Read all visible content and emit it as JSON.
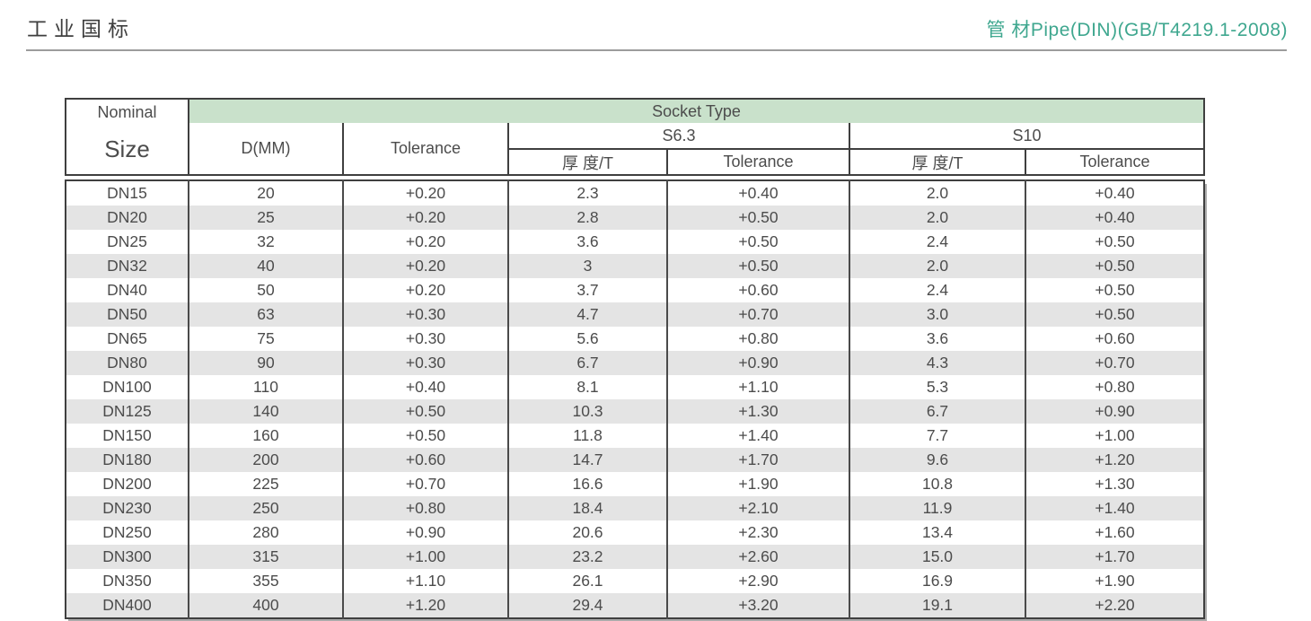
{
  "page": {
    "title_left": "工业国标",
    "title_right": "管 材Pipe(DIN)(GB/T4219.1-2008)"
  },
  "colors": {
    "accent_teal": "#3fa78f",
    "header_band_green": "#c9e1cb",
    "row_stripe_gray": "#e4e4e4",
    "text_gray": "#4c4c4c",
    "border_dark": "#3f3f3f",
    "rule_gray": "#9c9c9c"
  },
  "table": {
    "header": {
      "nominal": {
        "line1": "Nominal",
        "line2": "Size"
      },
      "socket_type": "Socket Type",
      "d_mm": "D(MM)",
      "tolerance": "Tolerance",
      "groups": [
        {
          "label": "S6.3",
          "thickness": "厚 度/T",
          "tolerance": "Tolerance"
        },
        {
          "label": "S10",
          "thickness": "厚 度/T",
          "tolerance": "Tolerance"
        }
      ]
    },
    "rows": [
      [
        "DN15",
        "20",
        "+0.20",
        "2.3",
        "+0.40",
        "2.0",
        "+0.40"
      ],
      [
        "DN20",
        "25",
        "+0.20",
        "2.8",
        "+0.50",
        "2.0",
        "+0.40"
      ],
      [
        "DN25",
        "32",
        "+0.20",
        "3.6",
        "+0.50",
        "2.4",
        "+0.50"
      ],
      [
        "DN32",
        "40",
        "+0.20",
        "3",
        "+0.50",
        "2.0",
        "+0.50"
      ],
      [
        "DN40",
        "50",
        "+0.20",
        "3.7",
        "+0.60",
        "2.4",
        "+0.50"
      ],
      [
        "DN50",
        "63",
        "+0.30",
        "4.7",
        "+0.70",
        "3.0",
        "+0.50"
      ],
      [
        "DN65",
        "75",
        "+0.30",
        "5.6",
        "+0.80",
        "3.6",
        "+0.60"
      ],
      [
        "DN80",
        "90",
        "+0.30",
        "6.7",
        "+0.90",
        "4.3",
        "+0.70"
      ],
      [
        "DN100",
        "110",
        "+0.40",
        "8.1",
        "+1.10",
        "5.3",
        "+0.80"
      ],
      [
        "DN125",
        "140",
        "+0.50",
        "10.3",
        "+1.30",
        "6.7",
        "+0.90"
      ],
      [
        "DN150",
        "160",
        "+0.50",
        "11.8",
        "+1.40",
        "7.7",
        "+1.00"
      ],
      [
        "DN180",
        "200",
        "+0.60",
        "14.7",
        "+1.70",
        "9.6",
        "+1.20"
      ],
      [
        "DN200",
        "225",
        "+0.70",
        "16.6",
        "+1.90",
        "10.8",
        "+1.30"
      ],
      [
        "DN230",
        "250",
        "+0.80",
        "18.4",
        "+2.10",
        "11.9",
        "+1.40"
      ],
      [
        "DN250",
        "280",
        "+0.90",
        "20.6",
        "+2.30",
        "13.4",
        "+1.60"
      ],
      [
        "DN300",
        "315",
        "+1.00",
        "23.2",
        "+2.60",
        "15.0",
        "+1.70"
      ],
      [
        "DN350",
        "355",
        "+1.10",
        "26.1",
        "+2.90",
        "16.9",
        "+1.90"
      ],
      [
        "DN400",
        "400",
        "+1.20",
        "29.4",
        "+3.20",
        "19.1",
        "+2.20"
      ]
    ]
  }
}
